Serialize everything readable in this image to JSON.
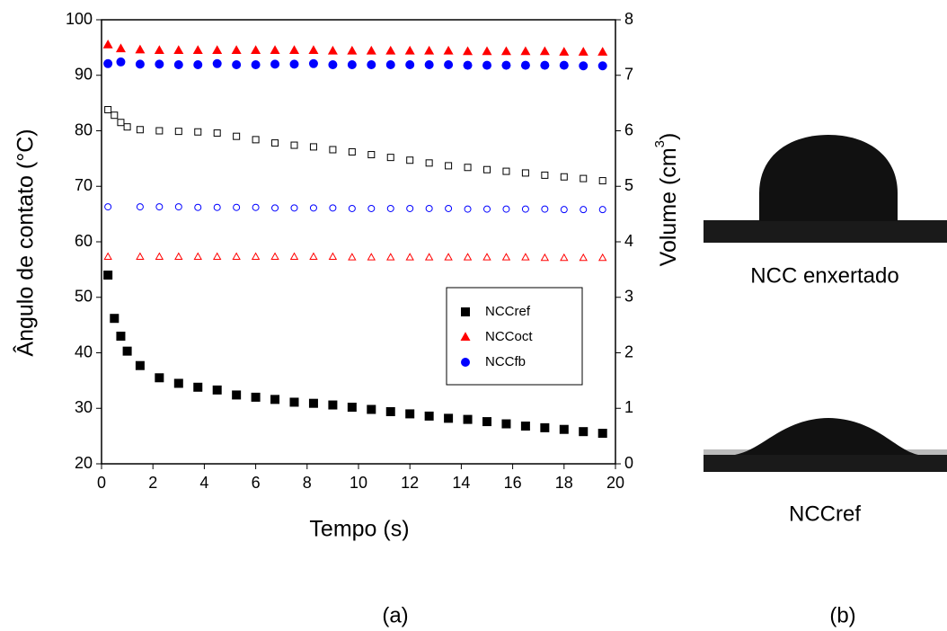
{
  "chart_data": {
    "type": "scatter",
    "xlabel": "Tempo (s)",
    "ylabel": "Ângulo de contato (°C)",
    "y2label": {
      "text": "Volume (cm",
      "sup": "3",
      "close": ")"
    },
    "xlim": [
      0,
      20
    ],
    "xticks": [
      0,
      2,
      4,
      6,
      8,
      10,
      12,
      14,
      16,
      18,
      20
    ],
    "ylim": [
      20,
      100
    ],
    "yticks": [
      20,
      30,
      40,
      50,
      60,
      70,
      80,
      90,
      100
    ],
    "y2lim": [
      0,
      8
    ],
    "y2ticks": [
      0,
      1,
      2,
      3,
      4,
      5,
      6,
      7,
      8
    ],
    "series": [
      {
        "name": "NCCref",
        "color": "#000000",
        "marker": "square",
        "filled": true,
        "x": [
          0.25,
          0.5,
          0.75,
          1,
          1.5,
          2.25,
          3,
          3.75,
          4.5,
          5.25,
          6,
          6.75,
          7.5,
          8.25,
          9,
          9.75,
          10.5,
          11.25,
          12,
          12.75,
          13.5,
          14.25,
          15,
          15.75,
          16.5,
          17.25,
          18,
          18.75,
          19.5
        ],
        "values": [
          54,
          46.2,
          43,
          40.3,
          37.7,
          35.5,
          34.5,
          33.8,
          33.3,
          32.4,
          32,
          31.6,
          31.1,
          30.9,
          30.6,
          30.2,
          29.8,
          29.4,
          29,
          28.6,
          28.2,
          28,
          27.6,
          27.2,
          26.8,
          26.5,
          26.2,
          25.8,
          25.5
        ]
      },
      {
        "name": "NCCoct",
        "color": "#ff0000",
        "marker": "triangle",
        "filled": true,
        "x": [
          0.25,
          0.75,
          1.5,
          2.25,
          3,
          3.75,
          4.5,
          5.25,
          6,
          6.75,
          7.5,
          8.25,
          9,
          9.75,
          10.5,
          11.25,
          12,
          12.75,
          13.5,
          14.25,
          15,
          15.75,
          16.5,
          17.25,
          18,
          18.75,
          19.5
        ],
        "values": [
          95.5,
          94.8,
          94.6,
          94.5,
          94.5,
          94.5,
          94.5,
          94.5,
          94.5,
          94.5,
          94.5,
          94.5,
          94.4,
          94.4,
          94.4,
          94.4,
          94.4,
          94.4,
          94.4,
          94.3,
          94.3,
          94.3,
          94.3,
          94.3,
          94.2,
          94.2,
          94.2
        ]
      },
      {
        "name": "NCCfb",
        "color": "#0000ff",
        "marker": "circle",
        "filled": true,
        "x": [
          0.25,
          0.75,
          1.5,
          2.25,
          3,
          3.75,
          4.5,
          5.25,
          6,
          6.75,
          7.5,
          8.25,
          9,
          9.75,
          10.5,
          11.25,
          12,
          12.75,
          13.5,
          14.25,
          15,
          15.75,
          16.5,
          17.25,
          18,
          18.75,
          19.5
        ],
        "values": [
          92.1,
          92.4,
          92,
          92,
          91.9,
          91.9,
          92.1,
          91.9,
          91.9,
          92,
          92,
          92.1,
          91.9,
          91.9,
          91.9,
          91.9,
          91.9,
          91.9,
          91.9,
          91.8,
          91.8,
          91.8,
          91.8,
          91.8,
          91.8,
          91.7,
          91.7
        ]
      },
      {
        "color": "#000000",
        "marker": "square",
        "filled": false,
        "axis": "y2",
        "x": [
          0.25,
          0.5,
          0.75,
          1,
          1.5,
          2.25,
          3,
          3.75,
          4.5,
          5.25,
          6,
          6.75,
          7.5,
          8.25,
          9,
          9.75,
          10.5,
          11.25,
          12,
          12.75,
          13.5,
          14.25,
          15,
          15.75,
          16.5,
          17.25,
          18,
          18.75,
          19.5
        ],
        "values": [
          6.38,
          6.28,
          6.15,
          6.07,
          6.02,
          6.0,
          5.99,
          5.98,
          5.96,
          5.9,
          5.84,
          5.78,
          5.74,
          5.71,
          5.66,
          5.62,
          5.57,
          5.52,
          5.47,
          5.42,
          5.37,
          5.34,
          5.3,
          5.27,
          5.24,
          5.2,
          5.17,
          5.14,
          5.1
        ]
      },
      {
        "color": "#0000ff",
        "marker": "circle",
        "filled": false,
        "axis": "y2",
        "x": [
          0.25,
          1.5,
          2.25,
          3,
          3.75,
          4.5,
          5.25,
          6,
          6.75,
          7.5,
          8.25,
          9,
          9.75,
          10.5,
          11.25,
          12,
          12.75,
          13.5,
          14.25,
          15,
          15.75,
          16.5,
          17.25,
          18,
          18.75,
          19.5
        ],
        "values": [
          4.63,
          4.63,
          4.63,
          4.63,
          4.62,
          4.62,
          4.62,
          4.62,
          4.61,
          4.61,
          4.61,
          4.61,
          4.6,
          4.6,
          4.6,
          4.6,
          4.6,
          4.6,
          4.59,
          4.59,
          4.59,
          4.59,
          4.59,
          4.58,
          4.58,
          4.58
        ]
      },
      {
        "color": "#ff0000",
        "marker": "triangle",
        "filled": false,
        "axis": "y2",
        "x": [
          0.25,
          1.5,
          2.25,
          3,
          3.75,
          4.5,
          5.25,
          6,
          6.75,
          7.5,
          8.25,
          9,
          9.75,
          10.5,
          11.25,
          12,
          12.75,
          13.5,
          14.25,
          15,
          15.75,
          16.5,
          17.25,
          18,
          18.75,
          19.5
        ],
        "values": [
          3.73,
          3.73,
          3.73,
          3.73,
          3.73,
          3.73,
          3.73,
          3.73,
          3.73,
          3.73,
          3.73,
          3.73,
          3.72,
          3.72,
          3.72,
          3.72,
          3.72,
          3.72,
          3.72,
          3.72,
          3.72,
          3.72,
          3.71,
          3.71,
          3.71,
          3.71
        ]
      }
    ]
  },
  "panels": {
    "a": "(a)",
    "b": "(b)",
    "photo_top": "NCC enxertado",
    "photo_bottom": "NCCref"
  }
}
